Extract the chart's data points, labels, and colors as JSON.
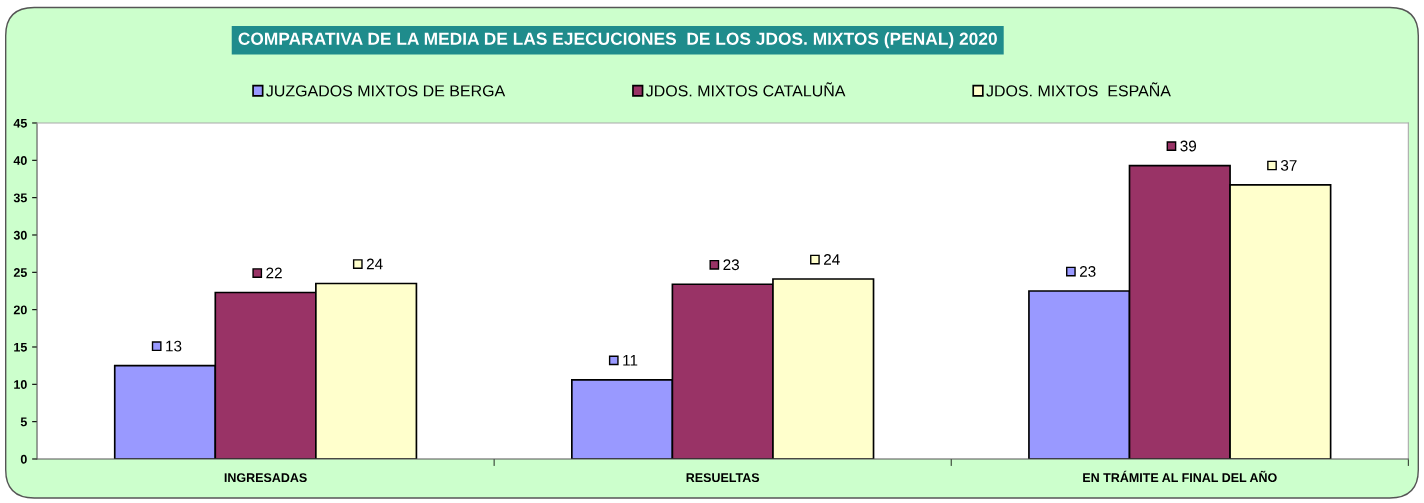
{
  "chart_data": {
    "type": "bar",
    "title": "COMPARATIVA DE LA MEDIA DE LAS EJECUCIONES  DE LOS JDOS. MIXTOS (PENAL) 2020",
    "categories": [
      "INGRESADAS",
      "RESUELTAS",
      "EN TRÁMITE AL FINAL DEL AÑO"
    ],
    "series": [
      {
        "name": "JUZGADOS MIXTOS DE BERGA",
        "color": "#9999ff",
        "values": [
          12.5,
          10.6,
          22.5
        ],
        "value_labels": [
          "13",
          "11",
          "23"
        ]
      },
      {
        "name": "JDOS. MIXTOS CATALUÑA",
        "color": "#993366",
        "values": [
          22.3,
          23.4,
          39.3
        ],
        "value_labels": [
          "22",
          "23",
          "39"
        ]
      },
      {
        "name": "JDOS. MIXTOS  ESPAÑA",
        "color": "#ffffcc",
        "values": [
          23.5,
          24.1,
          36.7
        ],
        "value_labels": [
          "24",
          "24",
          "37"
        ]
      }
    ],
    "ylim": [
      0,
      45
    ],
    "yticks": [
      0,
      5,
      10,
      15,
      20,
      25,
      30,
      35,
      40,
      45
    ],
    "grid": false,
    "legend": "top"
  }
}
